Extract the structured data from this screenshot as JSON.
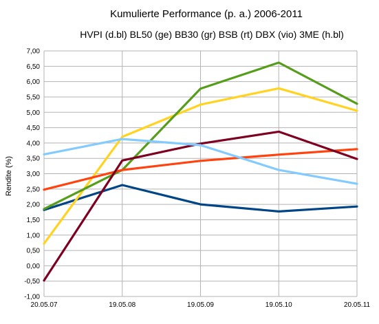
{
  "chart_data": {
    "type": "line",
    "title": "Kumulierte Performance (p. a.) 2006-2011",
    "subtitle": "HVPI (d.bl) BL50 (ge) BB30 (gr) BSB (rt) DBX (vio) 3ME (h.bl)",
    "xlabel": "",
    "ylabel": "Rendite (%)",
    "categories": [
      "20.05.07",
      "19.05.08",
      "19.05.09",
      "19.05.10",
      "20.05.11"
    ],
    "ylim": [
      -1.0,
      7.0
    ],
    "ytick_step": 0.5,
    "ytick_labels": [
      "-1,00",
      "-0,50",
      "0,00",
      "0,50",
      "1,00",
      "1,50",
      "2,00",
      "2,50",
      "3,00",
      "3,50",
      "4,00",
      "4,50",
      "5,00",
      "5,50",
      "6,00",
      "6,50",
      "7,00"
    ],
    "grid": true,
    "legend": "none",
    "series": [
      {
        "color": "#004586",
        "values": [
          1.82,
          2.63,
          2.0,
          1.77,
          1.93
        ]
      },
      {
        "color": "#ffd320",
        "values": [
          0.72,
          4.2,
          5.25,
          5.78,
          5.05
        ]
      },
      {
        "color": "#579d1c",
        "values": [
          1.85,
          3.12,
          5.77,
          6.62,
          5.28
        ]
      },
      {
        "color": "#ff420e",
        "values": [
          2.48,
          3.12,
          3.42,
          3.62,
          3.8
        ]
      },
      {
        "color": "#7e0021",
        "values": [
          -0.48,
          3.43,
          3.98,
          4.37,
          3.48
        ]
      },
      {
        "color": "#83caff",
        "values": [
          3.63,
          4.13,
          3.93,
          3.12,
          2.67
        ]
      }
    ]
  }
}
